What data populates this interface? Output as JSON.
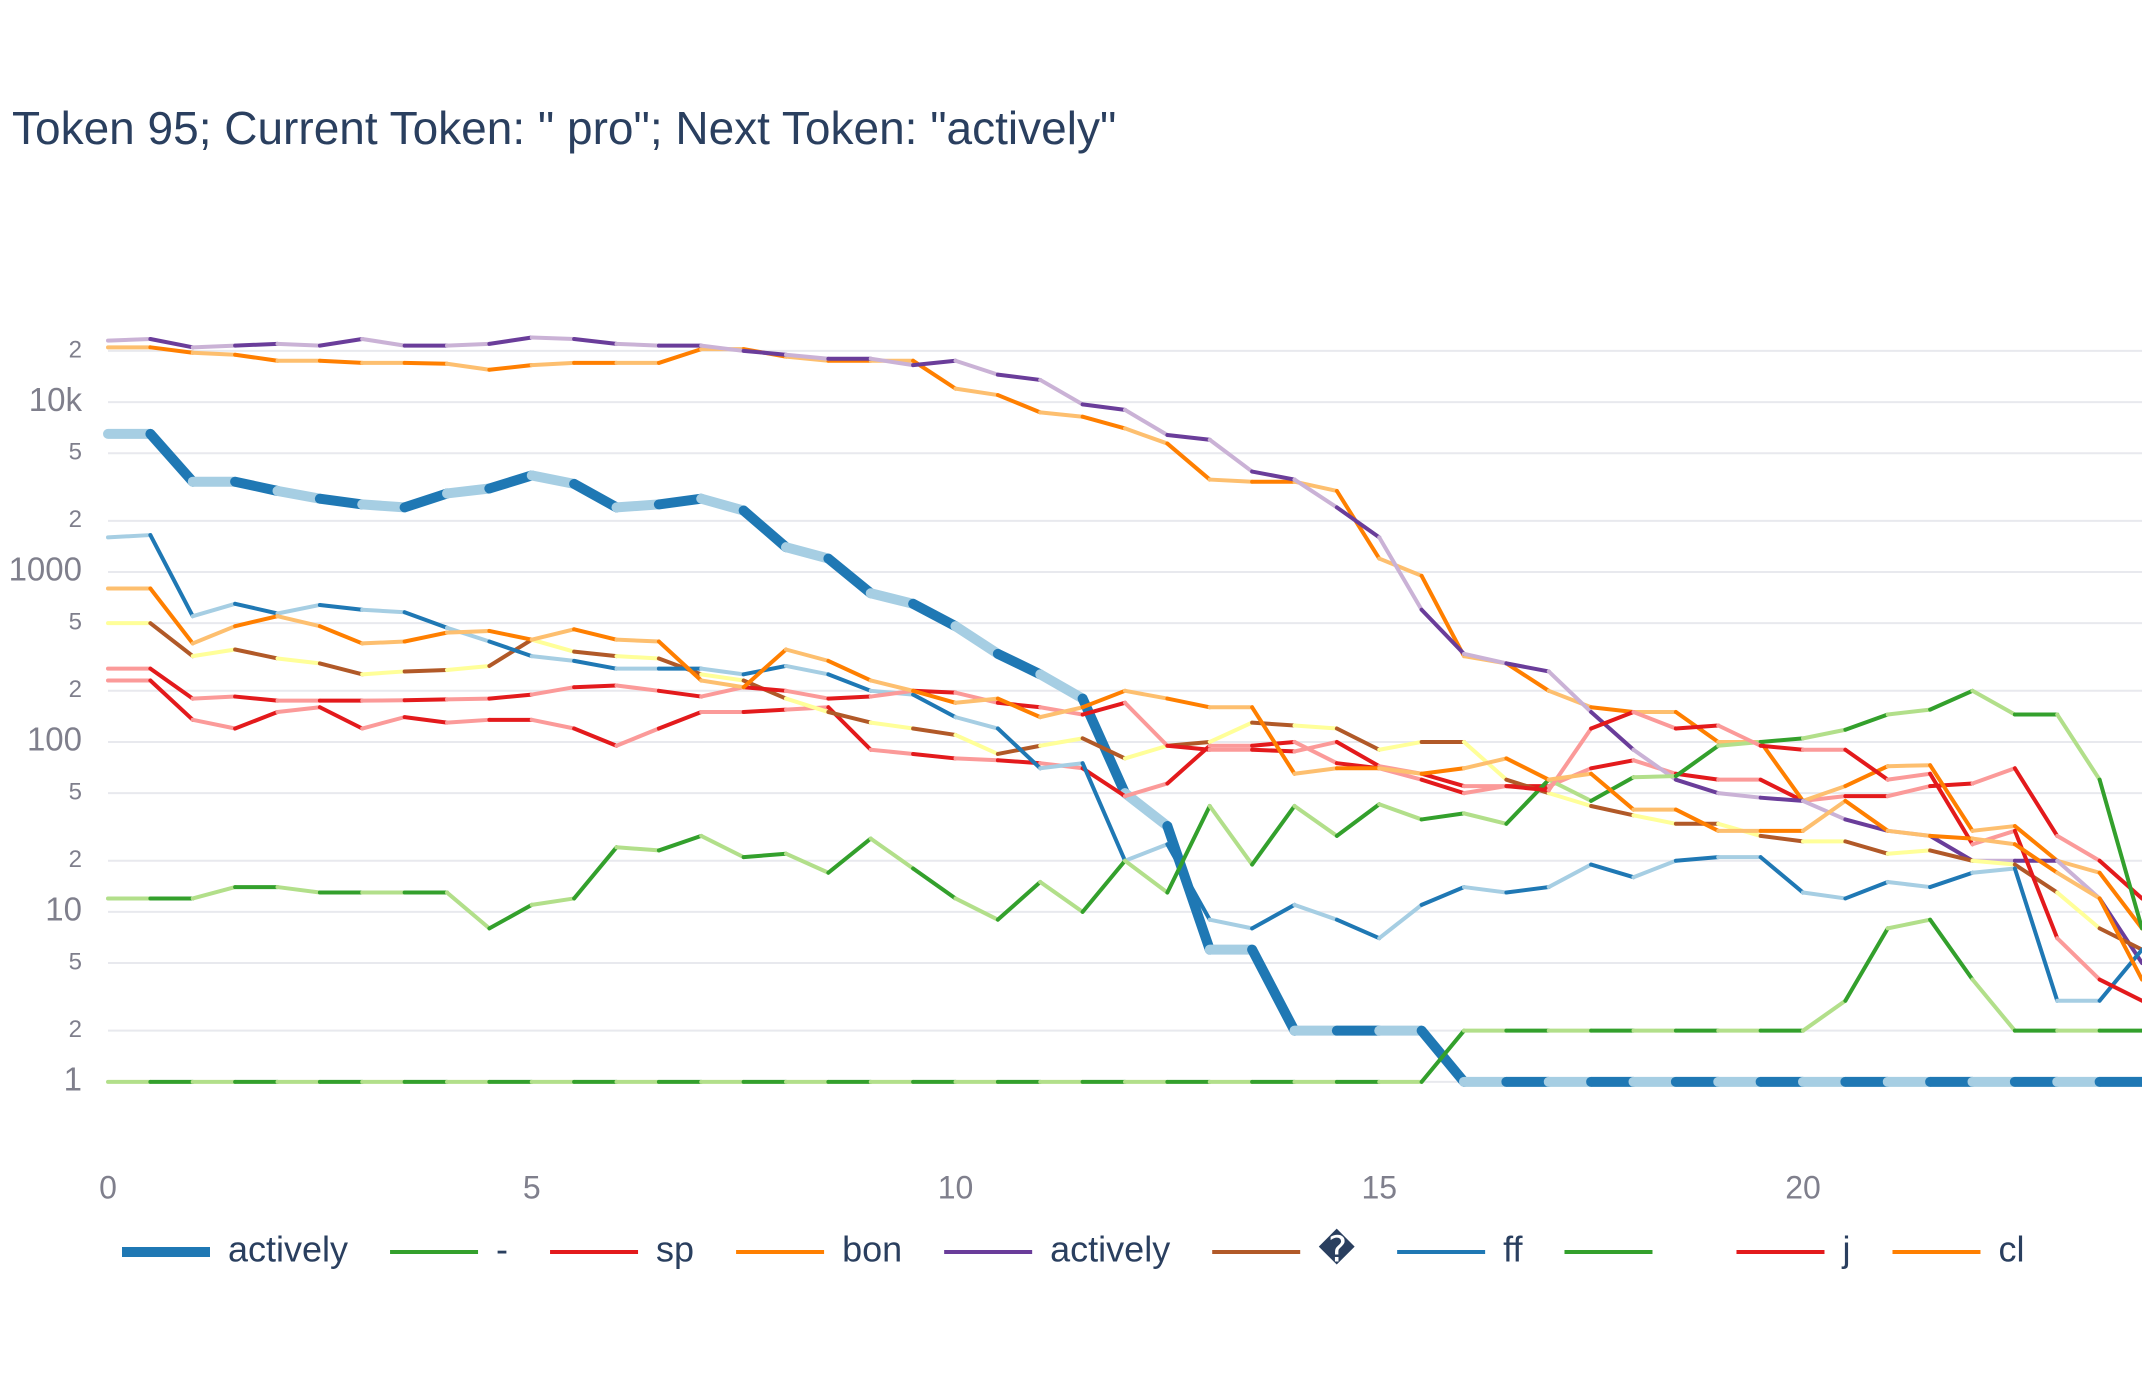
{
  "chart_data": {
    "type": "line",
    "title": "Token 95; Current Token: \" pro\"; Next Token: \"actively\"",
    "log_y": true,
    "grid": true,
    "legend_position": "bottom",
    "x": [
      0,
      0.5,
      1,
      1.5,
      2,
      2.5,
      3,
      3.5,
      4,
      4.5,
      5,
      5.5,
      6,
      6.5,
      7,
      7.5,
      8,
      8.5,
      9,
      9.5,
      10,
      10.5,
      11,
      11.5,
      12,
      12.5,
      13,
      13.5,
      14,
      14.5,
      15,
      15.5,
      16,
      16.5,
      17,
      17.5,
      18,
      18.5,
      19,
      19.5,
      20,
      20.5,
      21,
      21.5,
      22,
      22.5,
      23,
      23.5,
      24
    ],
    "xlim": [
      0,
      24
    ],
    "xticks": [
      0,
      5,
      10,
      15,
      20
    ],
    "ylim": [
      0.5,
      30000
    ],
    "yticks": [
      1,
      {
        "value": 2,
        "label": "2"
      },
      {
        "value": 5,
        "label": "5"
      },
      10,
      {
        "value": 20,
        "label": "2"
      },
      {
        "value": 50,
        "label": "5"
      },
      100,
      {
        "value": 200,
        "label": "2"
      },
      {
        "value": 500,
        "label": "5"
      },
      1000,
      {
        "value": 2000,
        "label": "2"
      },
      {
        "value": 5000,
        "label": "5"
      },
      {
        "value": 10000,
        "label": "10k"
      },
      {
        "value": 20000,
        "label": "2"
      }
    ],
    "series": [
      {
        "name": "actively",
        "color": "#1f78b4",
        "alt_color": "#a6cee3",
        "width": 10,
        "values": [
          6500,
          6500,
          3400,
          3400,
          3000,
          2700,
          2500,
          2400,
          2900,
          3100,
          3700,
          3300,
          2400,
          2500,
          2700,
          2300,
          1400,
          1200,
          750,
          650,
          480,
          330,
          250,
          180,
          50,
          32,
          6,
          6,
          2,
          2,
          2,
          2,
          1,
          1,
          1,
          1,
          1,
          1,
          1,
          1,
          1,
          1,
          1,
          1,
          1,
          1,
          1,
          1,
          1
        ]
      },
      {
        "name": "-",
        "color": "#33a02c",
        "alt_color": "#b2df8a",
        "width": 4,
        "values": [
          1,
          1,
          1,
          1,
          1,
          1,
          1,
          1,
          1,
          1,
          1,
          1,
          1,
          1,
          1,
          1,
          1,
          1,
          1,
          1,
          1,
          1,
          1,
          1,
          1,
          1,
          1,
          1,
          1,
          1,
          1,
          1,
          2,
          2,
          2,
          2,
          2,
          2,
          2,
          2,
          2,
          3,
          8,
          9,
          4,
          2,
          2,
          2,
          2
        ]
      },
      {
        "name": "sp",
        "color": "#e31a1c",
        "alt_color": "#fb9a99",
        "width": 4,
        "values": [
          230,
          230,
          135,
          120,
          150,
          160,
          120,
          140,
          130,
          135,
          135,
          120,
          95,
          120,
          150,
          150,
          155,
          160,
          90,
          85,
          80,
          78,
          75,
          70,
          48,
          57,
          95,
          95,
          100,
          75,
          70,
          60,
          50,
          55,
          55,
          70,
          78,
          65,
          60,
          60,
          45,
          48,
          48,
          55,
          57,
          70,
          28,
          20,
          12
        ]
      },
      {
        "name": "bon",
        "color": "#ff7f00",
        "alt_color": "#fdbf6f",
        "width": 4,
        "values": [
          21000,
          21000,
          19500,
          19000,
          17500,
          17500,
          17000,
          17000,
          16800,
          15500,
          16500,
          17000,
          17000,
          17000,
          20500,
          20500,
          18500,
          17500,
          17500,
          17500,
          12000,
          11000,
          8700,
          8200,
          7000,
          5700,
          3500,
          3400,
          3400,
          3000,
          1200,
          950,
          320,
          290,
          200,
          160,
          150,
          150,
          100,
          100,
          45,
          55,
          72,
          73,
          30,
          32,
          20,
          17,
          8
        ]
      },
      {
        "name": "actively",
        "color": "#6a3d9a",
        "alt_color": "#cab2d6",
        "width": 4,
        "values": [
          23000,
          23500,
          21000,
          21500,
          22000,
          21500,
          23500,
          21500,
          21500,
          22000,
          24000,
          23500,
          22000,
          21500,
          21500,
          20000,
          19000,
          18000,
          18000,
          16500,
          17500,
          14500,
          13500,
          9700,
          9000,
          6400,
          6000,
          3900,
          3500,
          2400,
          1600,
          600,
          330,
          290,
          260,
          150,
          90,
          60,
          50,
          47,
          45,
          35,
          30,
          28,
          20,
          20,
          20,
          12,
          5
        ]
      },
      {
        "name": "�",
        "color": "#b15928",
        "alt_color": "#ffff99",
        "width": 4,
        "values": [
          500,
          500,
          320,
          350,
          310,
          290,
          250,
          260,
          265,
          280,
          400,
          340,
          320,
          310,
          250,
          230,
          180,
          150,
          130,
          120,
          110,
          85,
          95,
          105,
          80,
          95,
          100,
          130,
          125,
          120,
          90,
          100,
          100,
          60,
          50,
          42,
          37,
          33,
          33,
          28,
          26,
          26,
          22,
          23,
          20,
          19,
          13,
          8,
          6
        ]
      },
      {
        "name": "ff",
        "color": "#1f78b4",
        "alt_color": "#a6cee3",
        "width": 4,
        "values": [
          1600,
          1650,
          550,
          650,
          570,
          640,
          600,
          580,
          470,
          390,
          320,
          300,
          270,
          270,
          270,
          250,
          280,
          250,
          200,
          190,
          140,
          120,
          70,
          75,
          20,
          25,
          9,
          8,
          11,
          9,
          7,
          11,
          14,
          13,
          14,
          19,
          16,
          20,
          21,
          21,
          13,
          12,
          15,
          14,
          17,
          18,
          3,
          3,
          6
        ]
      },
      {
        "name": null,
        "color": "#33a02c",
        "alt_color": "#b2df8a",
        "width": 4,
        "values": [
          12,
          12,
          12,
          14,
          14,
          13,
          13,
          13,
          13,
          8,
          11,
          12,
          24,
          23,
          28,
          21,
          22,
          17,
          27,
          18,
          12,
          9,
          15,
          10,
          20,
          13,
          42,
          19,
          42,
          28,
          43,
          35,
          38,
          33,
          60,
          45,
          62,
          63,
          95,
          100,
          105,
          118,
          145,
          155,
          200,
          145,
          145,
          60,
          8
        ]
      },
      {
        "name": "j",
        "color": "#e31a1c",
        "alt_color": "#fb9a99",
        "width": 4,
        "values": [
          270,
          270,
          180,
          185,
          175,
          175,
          175,
          176,
          178,
          180,
          190,
          210,
          215,
          200,
          185,
          210,
          200,
          180,
          185,
          200,
          195,
          170,
          160,
          145,
          170,
          95,
          90,
          90,
          88,
          100,
          72,
          65,
          55,
          55,
          52,
          120,
          150,
          120,
          125,
          95,
          90,
          90,
          60,
          65,
          25,
          30,
          7,
          4,
          3
        ]
      },
      {
        "name": "cl",
        "color": "#ff7f00",
        "alt_color": "#fdbf6f",
        "width": 4,
        "values": [
          800,
          800,
          380,
          480,
          550,
          480,
          380,
          390,
          440,
          450,
          400,
          460,
          400,
          390,
          230,
          210,
          350,
          300,
          230,
          200,
          170,
          180,
          140,
          160,
          200,
          180,
          160,
          160,
          65,
          70,
          70,
          65,
          70,
          80,
          60,
          65,
          40,
          40,
          30,
          30,
          30,
          45,
          30,
          28,
          27,
          25,
          17,
          12,
          4
        ]
      }
    ]
  }
}
